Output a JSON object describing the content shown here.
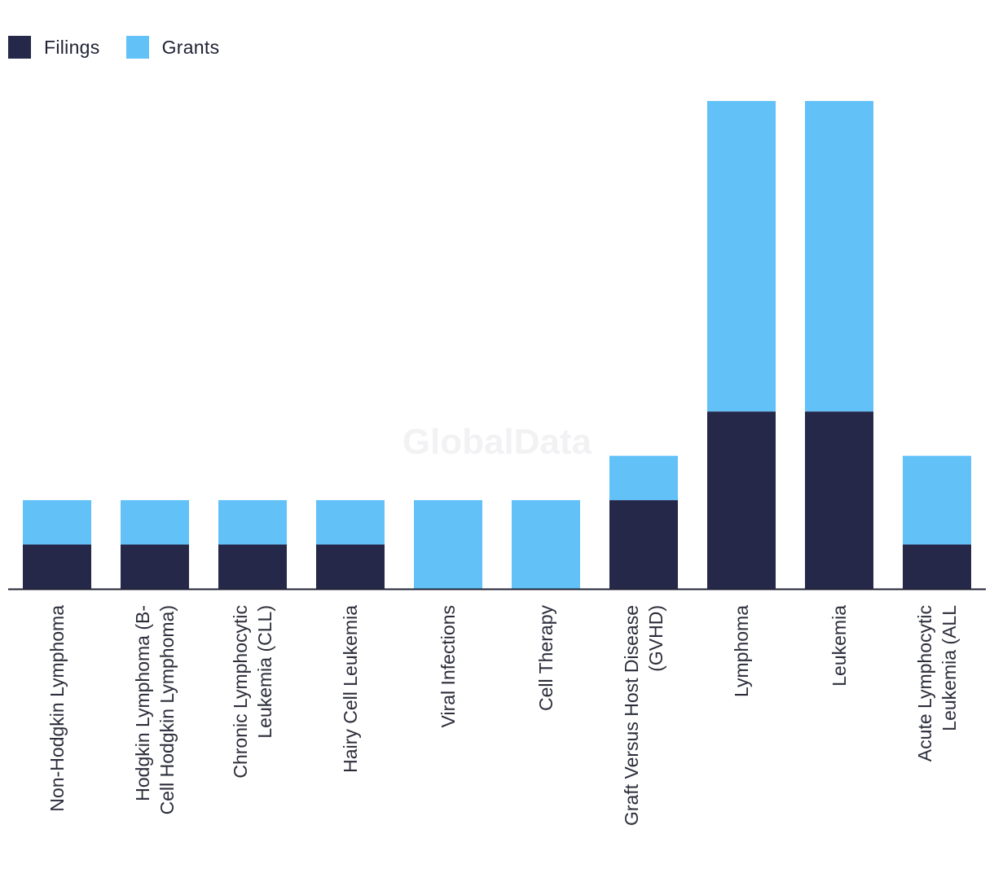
{
  "legend": {
    "filings_label": "Filings",
    "grants_label": "Grants"
  },
  "watermark": "GlobalData",
  "colors": {
    "filings": "#26284a",
    "grants": "#62c2f8",
    "axis": "#1f2233",
    "label": "#2b2d3a"
  },
  "chart_data": {
    "type": "bar",
    "stacked": true,
    "categories": [
      [
        "Non-Hodgkin Lymphoma"
      ],
      [
        "Hodgkin Lymphoma (B-",
        "Cell Hodgkin Lymphoma)"
      ],
      [
        "Chronic Lymphocytic",
        "Leukemia (CLL)"
      ],
      [
        "Hairy Cell Leukemia"
      ],
      [
        "Viral Infections"
      ],
      [
        "Cell Therapy"
      ],
      [
        "Graft Versus Host Disease",
        "(GVHD)"
      ],
      [
        "Lymphoma"
      ],
      [
        "Leukemia"
      ],
      [
        "Acute Lymphocytic",
        "Leukemia (ALL"
      ]
    ],
    "series": [
      {
        "name": "Filings",
        "values": [
          1,
          1,
          1,
          1,
          0,
          0,
          2,
          4,
          4,
          1
        ]
      },
      {
        "name": "Grants",
        "values": [
          1,
          1,
          1,
          1,
          2,
          2,
          1,
          7,
          7,
          2
        ]
      }
    ],
    "ylim": [
      0,
      11
    ],
    "grid": false,
    "legend_position": "top-left",
    "title": "",
    "xlabel": "",
    "ylabel": ""
  }
}
